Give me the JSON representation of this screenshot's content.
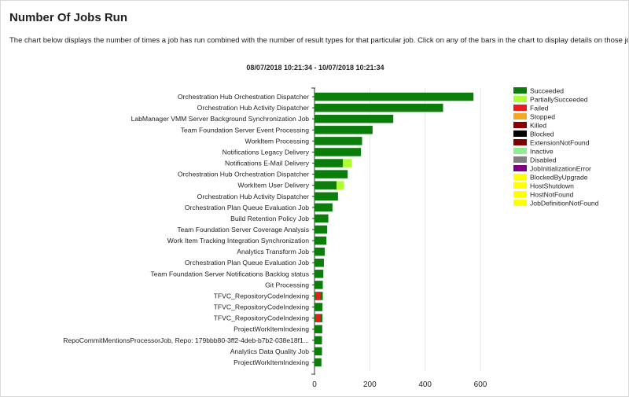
{
  "page": {
    "title": "Number Of Jobs Run",
    "description": "The chart below displays the number of times a job has run combined with the number of result types for that particular job. Click on any of the bars in the chart to display details on those jo",
    "date_range": "08/07/2018 10:21:34  -  10/07/2018 10:21:34"
  },
  "colors": {
    "Succeeded": "#0a7d0a",
    "PartiallySucceeded": "#adff2f",
    "Failed": "#e81e1e",
    "Stopped": "#f5a623",
    "Killed": "#8b0000",
    "Blocked": "#000000",
    "ExtensionNotFound": "#800000",
    "Inactive": "#90ee90",
    "Disabled": "#808080",
    "JobInitializationError": "#800080",
    "BlockedByUpgrade": "#ffff00",
    "HostShutdown": "#ffff00",
    "HostNotFound": "#ffff00",
    "JobDefinitionNotFound": "#ffff00"
  },
  "chart_data": {
    "type": "bar",
    "orientation": "horizontal",
    "stacked": true,
    "xlim": [
      0,
      600
    ],
    "xticks": [
      0,
      200,
      400,
      600
    ],
    "grid": true,
    "legend_position": "right",
    "legend": [
      "Succeeded",
      "PartiallySucceeded",
      "Failed",
      "Stopped",
      "Killed",
      "Blocked",
      "ExtensionNotFound",
      "Inactive",
      "Disabled",
      "JobInitializationError",
      "BlockedByUpgrade",
      "HostShutdown",
      "HostNotFound",
      "JobDefinitionNotFound"
    ],
    "categories": [
      "Orchestration Hub Orchestration Dispatcher",
      "Orchestration Hub Activity Dispatcher",
      "LabManager VMM Server Background Synchronization Job",
      "Team Foundation Server Event Processing",
      "WorkItem Processing",
      "Notifications Legacy Delivery",
      "Notifications E-Mail Delivery",
      "Orchestration Hub Orchestration Dispatcher",
      "WorkItem User Delivery",
      "Orchestration Hub Activity Dispatcher",
      "Orchestration Plan Queue Evaluation Job",
      "Build Retention Policy Job",
      "Team Foundation Server Coverage Analysis",
      "Work Item Tracking Integration Synchronization",
      "Analytics Transform Job",
      "Orchestration Plan Queue Evaluation Job",
      "Team Foundation Server Notifications Backlog status",
      "Git Processing",
      "TFVC_RepositoryCodeIndexing",
      "TFVC_RepositoryCodeIndexing",
      "TFVC_RepositoryCodeIndexing",
      "ProjectWorkItemIndexing",
      "RepoCommitMentionsProcessorJob, Repo: 179bbb80-3ff2-4deb-b7b2-038e18f1...",
      "Analytics Data Quality Job",
      "ProjectWorkItemIndexing"
    ],
    "series": [
      {
        "name": "Succeeded",
        "values": [
          575,
          465,
          285,
          210,
          172,
          168,
          103,
          120,
          80,
          85,
          65,
          50,
          46,
          43,
          37,
          34,
          32,
          30,
          30,
          29,
          29,
          28,
          27,
          27,
          25
        ]
      },
      {
        "name": "PartiallySucceeded",
        "values": [
          0,
          0,
          0,
          0,
          0,
          0,
          32,
          0,
          27,
          0,
          0,
          0,
          0,
          0,
          0,
          0,
          0,
          0,
          0,
          0,
          0,
          0,
          0,
          0,
          0
        ]
      },
      {
        "name": "Failed",
        "values": [
          0,
          0,
          0,
          0,
          0,
          0,
          0,
          0,
          0,
          0,
          0,
          0,
          0,
          0,
          0,
          0,
          0,
          0,
          0,
          0,
          0,
          0,
          0,
          0,
          0
        ]
      },
      {
        "name": "Stopped",
        "values": [
          0,
          0,
          0,
          0,
          0,
          0,
          0,
          0,
          0,
          0,
          0,
          0,
          0,
          0,
          0,
          0,
          0,
          0,
          0,
          0,
          0,
          0,
          0,
          0,
          0
        ]
      }
    ],
    "failed_overlay": [
      0,
      0,
      0,
      0,
      0,
      0,
      0,
      0,
      0,
      0,
      0,
      0,
      0,
      0,
      0,
      0,
      0,
      0,
      22,
      0,
      22,
      0,
      0,
      0,
      0
    ],
    "note_failed_overlay_shown_within_succeeded": true
  }
}
